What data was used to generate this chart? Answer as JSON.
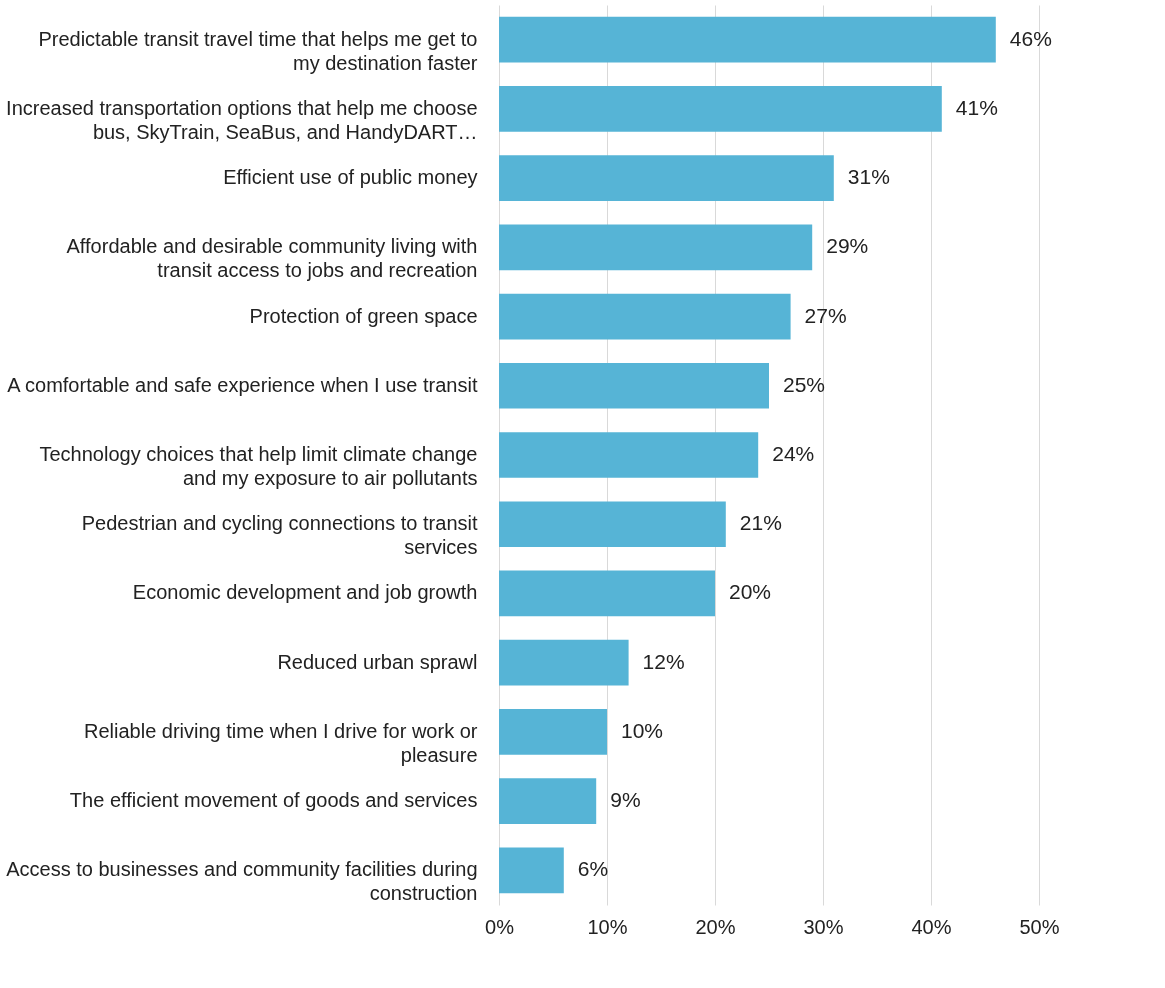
{
  "chart_data": {
    "type": "bar",
    "orientation": "horizontal",
    "categories": [
      "Predictable transit travel time that helps me get to my destination faster",
      "Increased transportation options that help me choose bus, SkyTrain, SeaBus, and HandyDART…",
      "Efficient use of public money",
      "Affordable and desirable community living with transit access to jobs and recreation",
      "Protection of green space",
      "A comfortable and safe experience when I use transit",
      "Technology choices that help limit climate change and my exposure to air pollutants",
      "Pedestrian and cycling connections to transit services",
      "Economic development and job growth",
      "Reduced urban sprawl",
      "Reliable driving time when I drive for work or pleasure",
      "The efficient movement of goods and services",
      "Access to businesses and community facilities during construction"
    ],
    "values": [
      46,
      41,
      31,
      29,
      27,
      25,
      24,
      21,
      20,
      12,
      10,
      9,
      6
    ],
    "value_labels": [
      "46%",
      "41%",
      "31%",
      "29%",
      "27%",
      "25%",
      "24%",
      "21%",
      "20%",
      "12%",
      "10%",
      "9%",
      "6%"
    ],
    "color": "#56b4d6",
    "xlim": [
      0,
      50
    ],
    "xticks": [
      {
        "value": 0,
        "label": "0%"
      },
      {
        "value": 10,
        "label": "10%"
      },
      {
        "value": 20,
        "label": "20%"
      },
      {
        "value": 30,
        "label": "30%"
      },
      {
        "value": 40,
        "label": "40%"
      },
      {
        "value": 50,
        "label": "50%"
      }
    ],
    "grid": "x"
  }
}
